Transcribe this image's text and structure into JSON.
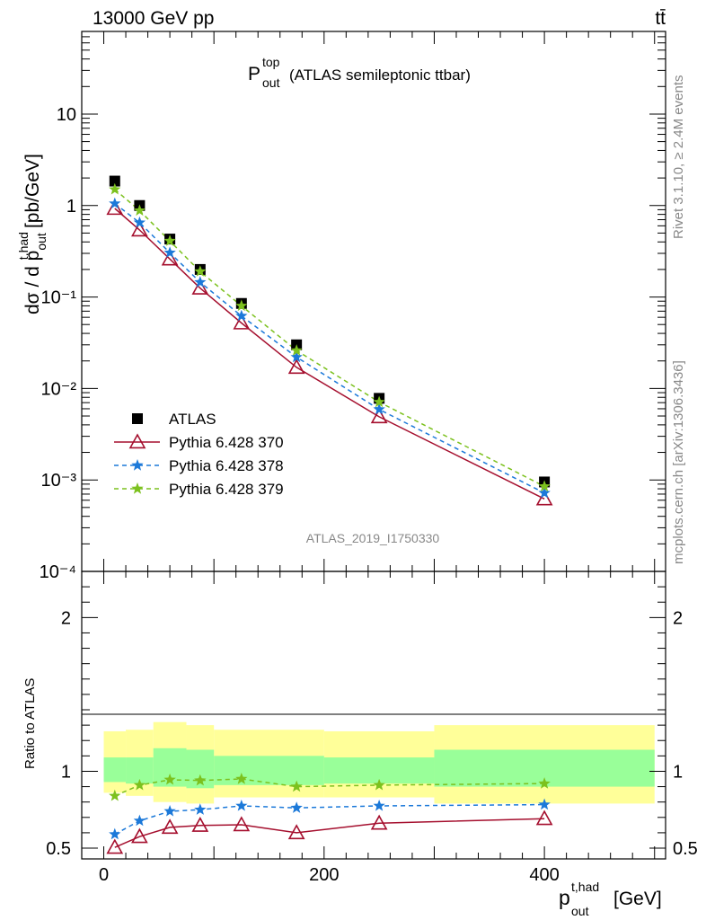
{
  "header": {
    "energy_label": "13000 GeV pp",
    "process_label": "tt̄"
  },
  "side_labels": {
    "rivet": "Rivet 3.1.10, ≥ 2.4M events",
    "mcplots": "mcplots.cern.ch [arXiv:1306.3436]"
  },
  "chart_data": [
    {
      "type": "scatter",
      "panel": "main",
      "title": {
        "main": "P",
        "sup": "top",
        "sub": "out",
        "rest": "(ATLAS semileptonic ttbar)"
      },
      "ylabel": "dσ / d p",
      "ylabel_sup": "t,had",
      "ylabel_sub": "out",
      "ylabel_unit": "[pb/GeV]",
      "yscale": "log",
      "ylim": [
        0.0001,
        80
      ],
      "xlim": [
        -20,
        510
      ],
      "ytick_labels": [
        "10⁻⁴",
        "10⁻³",
        "10⁻²",
        "10⁻¹",
        "1",
        "10"
      ],
      "analysis_label": "ATLAS_2019_I1750330",
      "x": [
        10,
        32.5,
        60,
        87.5,
        125,
        175,
        250,
        400
      ],
      "series": [
        {
          "name": "ATLAS",
          "marker": "square",
          "color": "#000000",
          "values": [
            1.85,
            1.0,
            0.43,
            0.2,
            0.085,
            0.03,
            0.0078,
            0.00095
          ]
        },
        {
          "name": "Pythia 6.428 370",
          "marker": "triangle",
          "line": "solid",
          "color": "#a50f2e",
          "values": [
            0.93,
            0.54,
            0.26,
            0.125,
            0.052,
            0.017,
            0.0049,
            0.00062
          ]
        },
        {
          "name": "Pythia 6.428 378",
          "marker": "star",
          "line": "dashed",
          "color": "#1c79d9",
          "values": [
            1.05,
            0.65,
            0.305,
            0.145,
            0.062,
            0.022,
            0.0059,
            0.00072
          ]
        },
        {
          "name": "Pythia 6.428 379",
          "marker": "star",
          "line": "dashed",
          "color": "#7cc11e",
          "values": [
            1.5,
            0.88,
            0.41,
            0.19,
            0.08,
            0.026,
            0.0071,
            0.00085
          ]
        }
      ]
    },
    {
      "type": "line",
      "panel": "ratio",
      "ylabel": "Ratio to ATLAS",
      "ylim": [
        0.43,
        2.3
      ],
      "xlabel": "p",
      "xlabel_sup": "t,had",
      "xlabel_sub": "out",
      "xlabel_unit": "[GeV]",
      "x_ticks": [
        0,
        200,
        400
      ],
      "y_ticks": [
        0.5,
        1,
        2
      ],
      "x": [
        10,
        32.5,
        60,
        87.5,
        125,
        175,
        250,
        400
      ],
      "bins": [
        [
          0,
          20
        ],
        [
          20,
          45
        ],
        [
          45,
          75
        ],
        [
          75,
          100
        ],
        [
          100,
          150
        ],
        [
          150,
          200
        ],
        [
          200,
          300
        ],
        [
          300,
          500
        ]
      ],
      "band_yellow": [
        [
          0.86,
          1.26
        ],
        [
          0.84,
          1.27
        ],
        [
          0.8,
          1.32
        ],
        [
          0.79,
          1.3
        ],
        [
          0.83,
          1.27
        ],
        [
          0.83,
          1.27
        ],
        [
          0.83,
          1.26
        ],
        [
          0.79,
          1.3
        ]
      ],
      "band_green": [
        [
          0.93,
          1.09
        ],
        [
          0.92,
          1.09
        ],
        [
          0.9,
          1.15
        ],
        [
          0.89,
          1.14
        ],
        [
          0.91,
          1.1
        ],
        [
          0.91,
          1.1
        ],
        [
          0.92,
          1.09
        ],
        [
          0.9,
          1.14
        ]
      ],
      "series": [
        {
          "name": "Pythia 6.428 370",
          "color": "#a50f2e",
          "marker": "triangle",
          "line": "solid",
          "values": [
            0.505,
            0.575,
            0.635,
            0.648,
            0.652,
            0.6,
            0.662,
            0.692
          ]
        },
        {
          "name": "Pythia 6.428 378",
          "color": "#1c79d9",
          "marker": "star",
          "line": "dashed",
          "values": [
            0.59,
            0.678,
            0.74,
            0.75,
            0.775,
            0.762,
            0.775,
            0.783
          ]
        },
        {
          "name": "Pythia 6.428 379",
          "color": "#7cc11e",
          "marker": "star",
          "line": "dashed",
          "values": [
            0.84,
            0.91,
            0.945,
            0.94,
            0.95,
            0.9,
            0.91,
            0.92
          ]
        }
      ]
    }
  ]
}
